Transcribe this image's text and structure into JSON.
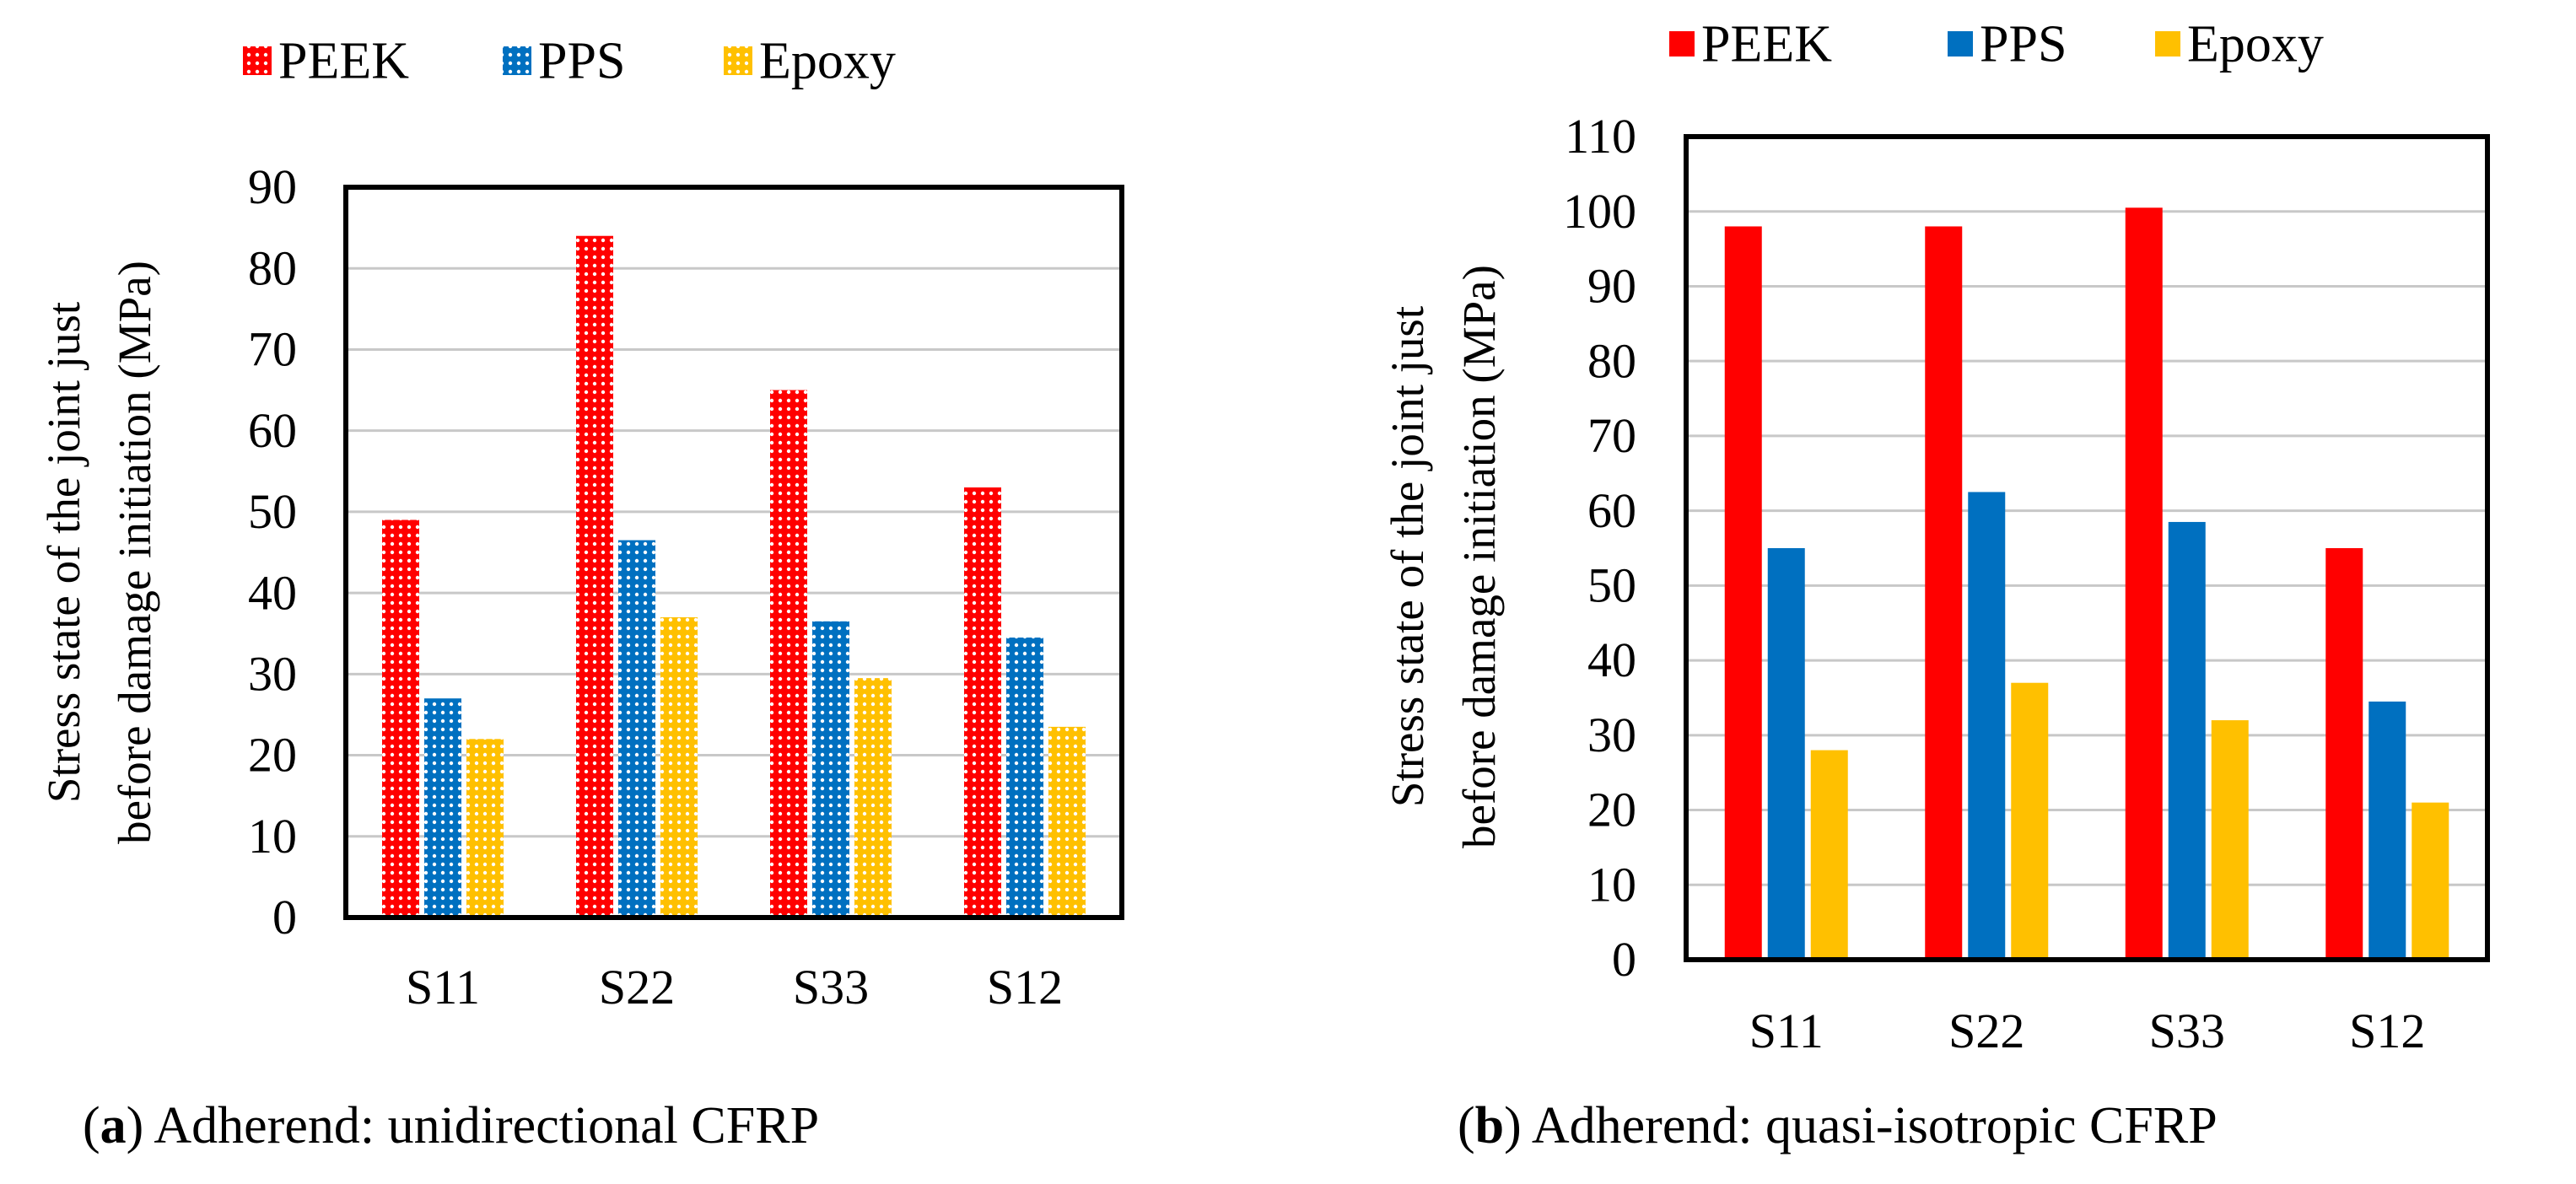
{
  "chart_data": [
    {
      "type": "bar",
      "panel": "a",
      "categories": [
        "S11",
        "S22",
        "S33",
        "S12"
      ],
      "series": [
        {
          "name": "PEEK",
          "values": [
            49,
            84,
            65,
            53
          ],
          "color": "#ff0000"
        },
        {
          "name": "PPS",
          "values": [
            27,
            46.5,
            36.5,
            34.5
          ],
          "color": "#0070c0"
        },
        {
          "name": "Epoxy",
          "values": [
            22,
            37,
            29.5,
            23.5
          ],
          "color": "#ffc000"
        }
      ],
      "ylabel_line1": "Stress state of the joint just",
      "ylabel_line2": "before damage initiation (MPa)",
      "ylim": [
        0,
        90
      ],
      "yticks": [
        0,
        10,
        20,
        30,
        40,
        50,
        60,
        70,
        80,
        90
      ],
      "grid": true,
      "legend": "top",
      "pattern": "dotted",
      "caption_letter": "a",
      "caption_text": "Adherend: unidirectional CFRP"
    },
    {
      "type": "bar",
      "panel": "b",
      "categories": [
        "S11",
        "S22",
        "S33",
        "S12"
      ],
      "series": [
        {
          "name": "PEEK",
          "values": [
            98,
            98,
            100.5,
            55
          ],
          "color": "#ff0000"
        },
        {
          "name": "PPS",
          "values": [
            55,
            62.5,
            58.5,
            34.5
          ],
          "color": "#0070c0"
        },
        {
          "name": "Epoxy",
          "values": [
            28,
            37,
            32,
            21
          ],
          "color": "#ffc000"
        }
      ],
      "ylabel_line1": "Stress state of the joint just",
      "ylabel_line2": "before damage initiation (MPa)",
      "ylim": [
        0,
        110
      ],
      "yticks": [
        0,
        10,
        20,
        30,
        40,
        50,
        60,
        70,
        80,
        90,
        100,
        110
      ],
      "grid": true,
      "legend": "top",
      "pattern": "solid",
      "caption_letter": "b",
      "caption_text": "Adherend: quasi-isotropic CFRP"
    }
  ]
}
